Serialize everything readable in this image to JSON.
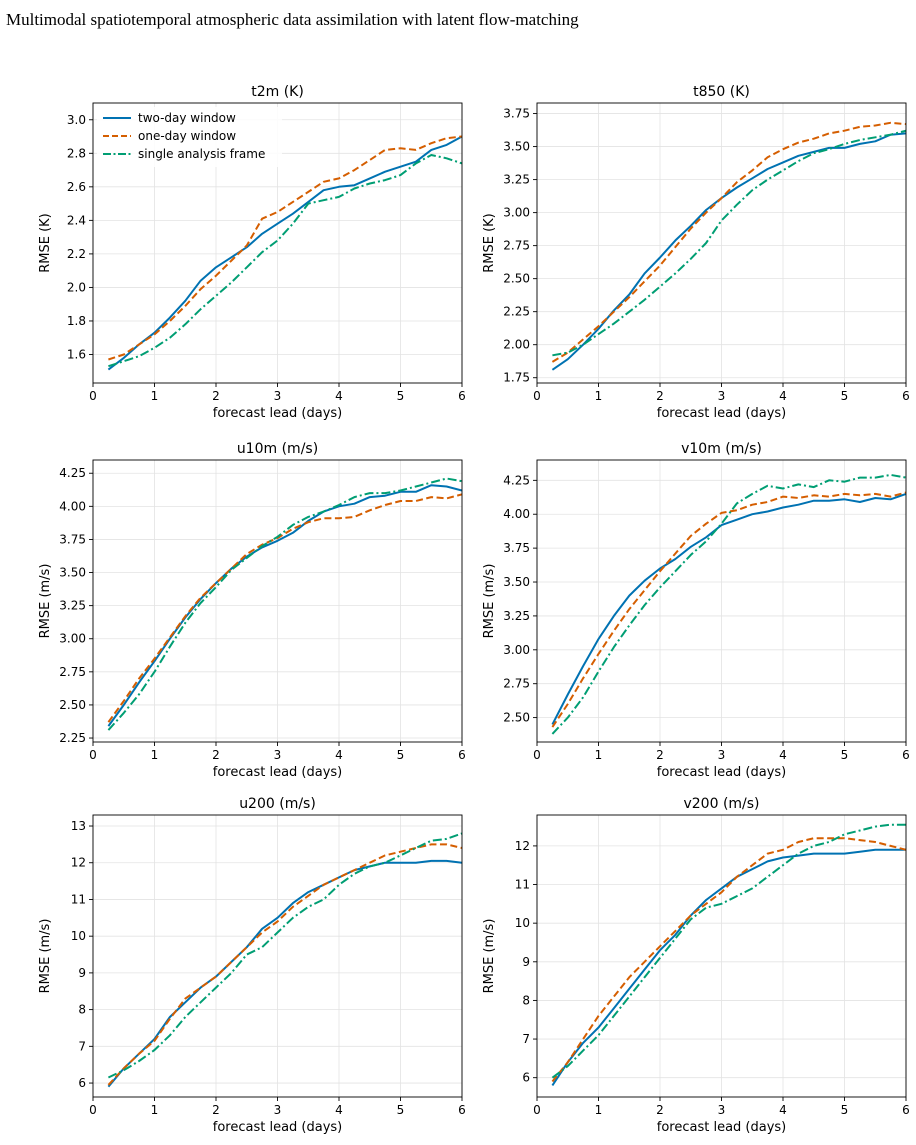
{
  "header": {
    "title": "Multimodal spatiotemporal atmospheric data assimilation with latent flow-matching"
  },
  "legend": {
    "placement": "top-left",
    "entries": [
      "two-day window",
      "one-day window",
      "single analysis frame"
    ]
  },
  "colors": {
    "two_day": "#0072b2",
    "one_day": "#d55e00",
    "single": "#009e73",
    "grid": "#e3e3e3"
  },
  "chart_data": [
    {
      "type": "line",
      "title": "t2m (K)",
      "xlabel": "forecast lead (days)",
      "ylabel": "RMSE (K)",
      "xlim": [
        0,
        6
      ],
      "ylim": [
        1.43,
        3.1
      ],
      "xticks": [
        0,
        1,
        2,
        3,
        4,
        5,
        6
      ],
      "yticks": [
        1.6,
        1.8,
        2.0,
        2.2,
        2.4,
        2.6,
        2.8,
        3.0
      ],
      "ytick_labels": [
        "1.6",
        "1.8",
        "2.0",
        "2.2",
        "2.4",
        "2.6",
        "2.8",
        "3.0"
      ],
      "grid": true,
      "x": [
        0.25,
        0.5,
        0.75,
        1.0,
        1.25,
        1.5,
        1.75,
        2.0,
        2.25,
        2.5,
        2.75,
        3.0,
        3.25,
        3.5,
        3.75,
        4.0,
        4.25,
        4.5,
        4.75,
        5.0,
        5.25,
        5.5,
        5.75,
        6.0
      ],
      "series": [
        {
          "name": "two-day window",
          "values": [
            1.51,
            1.58,
            1.66,
            1.73,
            1.82,
            1.92,
            2.04,
            2.12,
            2.18,
            2.24,
            2.32,
            2.38,
            2.44,
            2.51,
            2.58,
            2.6,
            2.61,
            2.65,
            2.69,
            2.72,
            2.75,
            2.82,
            2.85,
            2.9
          ]
        },
        {
          "name": "one-day window",
          "values": [
            1.57,
            1.6,
            1.66,
            1.72,
            1.8,
            1.89,
            1.99,
            2.07,
            2.16,
            2.25,
            2.41,
            2.45,
            2.51,
            2.57,
            2.63,
            2.65,
            2.7,
            2.76,
            2.82,
            2.83,
            2.82,
            2.86,
            2.89,
            2.9
          ]
        },
        {
          "name": "single analysis frame",
          "values": [
            1.53,
            1.56,
            1.59,
            1.64,
            1.7,
            1.78,
            1.87,
            1.95,
            2.03,
            2.12,
            2.21,
            2.28,
            2.38,
            2.5,
            2.52,
            2.54,
            2.59,
            2.62,
            2.64,
            2.67,
            2.74,
            2.79,
            2.77,
            2.74
          ]
        }
      ]
    },
    {
      "type": "line",
      "title": "t850 (K)",
      "xlabel": "forecast lead (days)",
      "ylabel": "RMSE (K)",
      "xlim": [
        0,
        6
      ],
      "ylim": [
        1.71,
        3.83
      ],
      "xticks": [
        0,
        1,
        2,
        3,
        4,
        5,
        6
      ],
      "yticks": [
        1.75,
        2.0,
        2.25,
        2.5,
        2.75,
        3.0,
        3.25,
        3.5,
        3.75
      ],
      "ytick_labels": [
        "1.75",
        "2.00",
        "2.25",
        "2.50",
        "2.75",
        "3.00",
        "3.25",
        "3.50",
        "3.75"
      ],
      "grid": true,
      "x": [
        0.25,
        0.5,
        0.75,
        1.0,
        1.25,
        1.5,
        1.75,
        2.0,
        2.25,
        2.5,
        2.75,
        3.0,
        3.25,
        3.5,
        3.75,
        4.0,
        4.25,
        4.5,
        4.75,
        5.0,
        5.25,
        5.5,
        5.75,
        6.0
      ],
      "series": [
        {
          "name": "two-day window",
          "values": [
            1.81,
            1.89,
            2.0,
            2.12,
            2.26,
            2.38,
            2.54,
            2.66,
            2.79,
            2.9,
            3.02,
            3.11,
            3.19,
            3.26,
            3.33,
            3.38,
            3.43,
            3.46,
            3.49,
            3.49,
            3.52,
            3.54,
            3.59,
            3.6
          ]
        },
        {
          "name": "one-day window",
          "values": [
            1.87,
            1.94,
            2.04,
            2.14,
            2.25,
            2.36,
            2.48,
            2.6,
            2.74,
            2.88,
            3.0,
            3.11,
            3.23,
            3.32,
            3.42,
            3.48,
            3.53,
            3.56,
            3.6,
            3.62,
            3.65,
            3.66,
            3.68,
            3.67
          ]
        },
        {
          "name": "single analysis frame",
          "values": [
            1.92,
            1.94,
            2.0,
            2.08,
            2.16,
            2.25,
            2.34,
            2.44,
            2.54,
            2.65,
            2.77,
            2.94,
            3.06,
            3.17,
            3.25,
            3.32,
            3.39,
            3.45,
            3.48,
            3.52,
            3.55,
            3.57,
            3.59,
            3.62
          ]
        }
      ]
    },
    {
      "type": "line",
      "title": "u10m (m/s)",
      "xlabel": "forecast lead (days)",
      "ylabel": "RMSE (m/s)",
      "xlim": [
        0,
        6
      ],
      "ylim": [
        2.22,
        4.35
      ],
      "xticks": [
        0,
        1,
        2,
        3,
        4,
        5,
        6
      ],
      "yticks": [
        2.25,
        2.5,
        2.75,
        3.0,
        3.25,
        3.5,
        3.75,
        4.0,
        4.25
      ],
      "ytick_labels": [
        "2.25",
        "2.50",
        "2.75",
        "3.00",
        "3.25",
        "3.50",
        "3.75",
        "4.00",
        "4.25"
      ],
      "grid": true,
      "x": [
        0.25,
        0.5,
        0.75,
        1.0,
        1.25,
        1.5,
        1.75,
        2.0,
        2.25,
        2.5,
        2.75,
        3.0,
        3.25,
        3.5,
        3.75,
        4.0,
        4.25,
        4.5,
        4.75,
        5.0,
        5.25,
        5.5,
        5.75,
        6.0
      ],
      "series": [
        {
          "name": "two-day window",
          "values": [
            2.34,
            2.5,
            2.67,
            2.83,
            3.0,
            3.16,
            3.3,
            3.42,
            3.53,
            3.62,
            3.69,
            3.74,
            3.8,
            3.89,
            3.96,
            4.0,
            4.02,
            4.07,
            4.08,
            4.11,
            4.11,
            4.16,
            4.15,
            4.12
          ]
        },
        {
          "name": "one-day window",
          "values": [
            2.37,
            2.53,
            2.7,
            2.85,
            3.01,
            3.17,
            3.31,
            3.42,
            3.53,
            3.64,
            3.71,
            3.76,
            3.83,
            3.88,
            3.91,
            3.91,
            3.92,
            3.97,
            4.01,
            4.04,
            4.04,
            4.07,
            4.06,
            4.09
          ]
        },
        {
          "name": "single analysis frame",
          "values": [
            2.31,
            2.44,
            2.58,
            2.75,
            2.94,
            3.12,
            3.27,
            3.39,
            3.52,
            3.61,
            3.7,
            3.77,
            3.86,
            3.92,
            3.96,
            4.01,
            4.07,
            4.1,
            4.1,
            4.12,
            4.15,
            4.18,
            4.21,
            4.19
          ]
        }
      ]
    },
    {
      "type": "line",
      "title": "v10m (m/s)",
      "xlabel": "forecast lead (days)",
      "ylabel": "RMSE (m/s)",
      "xlim": [
        0,
        6
      ],
      "ylim": [
        2.32,
        4.4
      ],
      "xticks": [
        0,
        1,
        2,
        3,
        4,
        5,
        6
      ],
      "yticks": [
        2.5,
        2.75,
        3.0,
        3.25,
        3.5,
        3.75,
        4.0,
        4.25
      ],
      "ytick_labels": [
        "2.50",
        "2.75",
        "3.00",
        "3.25",
        "3.50",
        "3.75",
        "4.00",
        "4.25"
      ],
      "grid": true,
      "x": [
        0.25,
        0.5,
        0.75,
        1.0,
        1.25,
        1.5,
        1.75,
        2.0,
        2.25,
        2.5,
        2.75,
        3.0,
        3.25,
        3.5,
        3.75,
        4.0,
        4.25,
        4.5,
        4.75,
        5.0,
        5.25,
        5.5,
        5.75,
        6.0
      ],
      "series": [
        {
          "name": "two-day window",
          "values": [
            2.45,
            2.67,
            2.88,
            3.08,
            3.25,
            3.4,
            3.51,
            3.6,
            3.67,
            3.76,
            3.83,
            3.92,
            3.96,
            4.0,
            4.02,
            4.05,
            4.07,
            4.1,
            4.1,
            4.11,
            4.09,
            4.12,
            4.11,
            4.15
          ]
        },
        {
          "name": "one-day window",
          "values": [
            2.43,
            2.6,
            2.79,
            2.97,
            3.14,
            3.3,
            3.44,
            3.58,
            3.71,
            3.84,
            3.93,
            4.01,
            4.03,
            4.07,
            4.09,
            4.13,
            4.12,
            4.14,
            4.13,
            4.15,
            4.14,
            4.15,
            4.13,
            4.16
          ]
        },
        {
          "name": "single analysis frame",
          "values": [
            2.38,
            2.5,
            2.65,
            2.84,
            3.02,
            3.18,
            3.33,
            3.46,
            3.58,
            3.7,
            3.8,
            3.93,
            4.08,
            4.15,
            4.21,
            4.19,
            4.22,
            4.2,
            4.25,
            4.24,
            4.27,
            4.27,
            4.29,
            4.27
          ]
        }
      ]
    },
    {
      "type": "line",
      "title": "u200 (m/s)",
      "xlabel": "forecast lead (days)",
      "ylabel": "RMSE (m/s)",
      "xlim": [
        0,
        6
      ],
      "ylim": [
        5.62,
        13.3
      ],
      "xticks": [
        0,
        1,
        2,
        3,
        4,
        5,
        6
      ],
      "yticks": [
        6,
        7,
        8,
        9,
        10,
        11,
        12,
        13
      ],
      "ytick_labels": [
        "6",
        "7",
        "8",
        "9",
        "10",
        "11",
        "12",
        "13"
      ],
      "grid": true,
      "x": [
        0.25,
        0.5,
        0.75,
        1.0,
        1.25,
        1.5,
        1.75,
        2.0,
        2.25,
        2.5,
        2.75,
        3.0,
        3.25,
        3.5,
        3.75,
        4.0,
        4.25,
        4.5,
        4.75,
        5.0,
        5.25,
        5.5,
        5.75,
        6.0
      ],
      "series": [
        {
          "name": "two-day window",
          "values": [
            5.9,
            6.4,
            6.8,
            7.2,
            7.8,
            8.2,
            8.6,
            8.9,
            9.3,
            9.7,
            10.2,
            10.5,
            10.9,
            11.2,
            11.4,
            11.6,
            11.8,
            11.9,
            12.0,
            12.0,
            12.0,
            12.05,
            12.05,
            12.0
          ]
        },
        {
          "name": "one-day window",
          "values": [
            5.95,
            6.4,
            6.8,
            7.15,
            7.75,
            8.3,
            8.6,
            8.9,
            9.3,
            9.7,
            10.1,
            10.4,
            10.8,
            11.1,
            11.4,
            11.6,
            11.8,
            12.0,
            12.2,
            12.3,
            12.4,
            12.5,
            12.5,
            12.4
          ]
        },
        {
          "name": "single analysis frame",
          "values": [
            6.15,
            6.35,
            6.6,
            6.9,
            7.3,
            7.8,
            8.2,
            8.6,
            9.0,
            9.5,
            9.7,
            10.1,
            10.5,
            10.8,
            11.0,
            11.4,
            11.7,
            11.9,
            12.0,
            12.2,
            12.4,
            12.6,
            12.65,
            12.8
          ]
        }
      ]
    },
    {
      "type": "line",
      "title": "v200 (m/s)",
      "xlabel": "forecast lead (days)",
      "ylabel": "RMSE (m/s)",
      "xlim": [
        0,
        6
      ],
      "ylim": [
        5.5,
        12.8
      ],
      "xticks": [
        0,
        1,
        2,
        3,
        4,
        5,
        6
      ],
      "yticks": [
        6,
        7,
        8,
        9,
        10,
        11,
        12
      ],
      "ytick_labels": [
        "6",
        "7",
        "8",
        "9",
        "10",
        "11",
        "12"
      ],
      "grid": true,
      "x": [
        0.25,
        0.5,
        0.75,
        1.0,
        1.25,
        1.5,
        1.75,
        2.0,
        2.25,
        2.5,
        2.75,
        3.0,
        3.25,
        3.5,
        3.75,
        4.0,
        4.25,
        4.5,
        4.75,
        5.0,
        5.25,
        5.5,
        5.75,
        6.0
      ],
      "series": [
        {
          "name": "two-day window",
          "values": [
            5.8,
            6.4,
            6.9,
            7.3,
            7.8,
            8.3,
            8.8,
            9.3,
            9.7,
            10.2,
            10.6,
            10.9,
            11.2,
            11.4,
            11.6,
            11.7,
            11.75,
            11.8,
            11.8,
            11.8,
            11.85,
            11.9,
            11.9,
            11.9
          ]
        },
        {
          "name": "one-day window",
          "values": [
            5.9,
            6.4,
            7.0,
            7.6,
            8.1,
            8.6,
            9.0,
            9.4,
            9.8,
            10.2,
            10.5,
            10.8,
            11.2,
            11.5,
            11.8,
            11.9,
            12.1,
            12.2,
            12.2,
            12.2,
            12.15,
            12.1,
            12.0,
            11.9
          ]
        },
        {
          "name": "single analysis frame",
          "values": [
            6.0,
            6.3,
            6.7,
            7.1,
            7.6,
            8.1,
            8.6,
            9.1,
            9.6,
            10.1,
            10.4,
            10.5,
            10.7,
            10.9,
            11.2,
            11.5,
            11.8,
            12.0,
            12.1,
            12.3,
            12.4,
            12.5,
            12.55,
            12.55
          ]
        }
      ]
    }
  ]
}
